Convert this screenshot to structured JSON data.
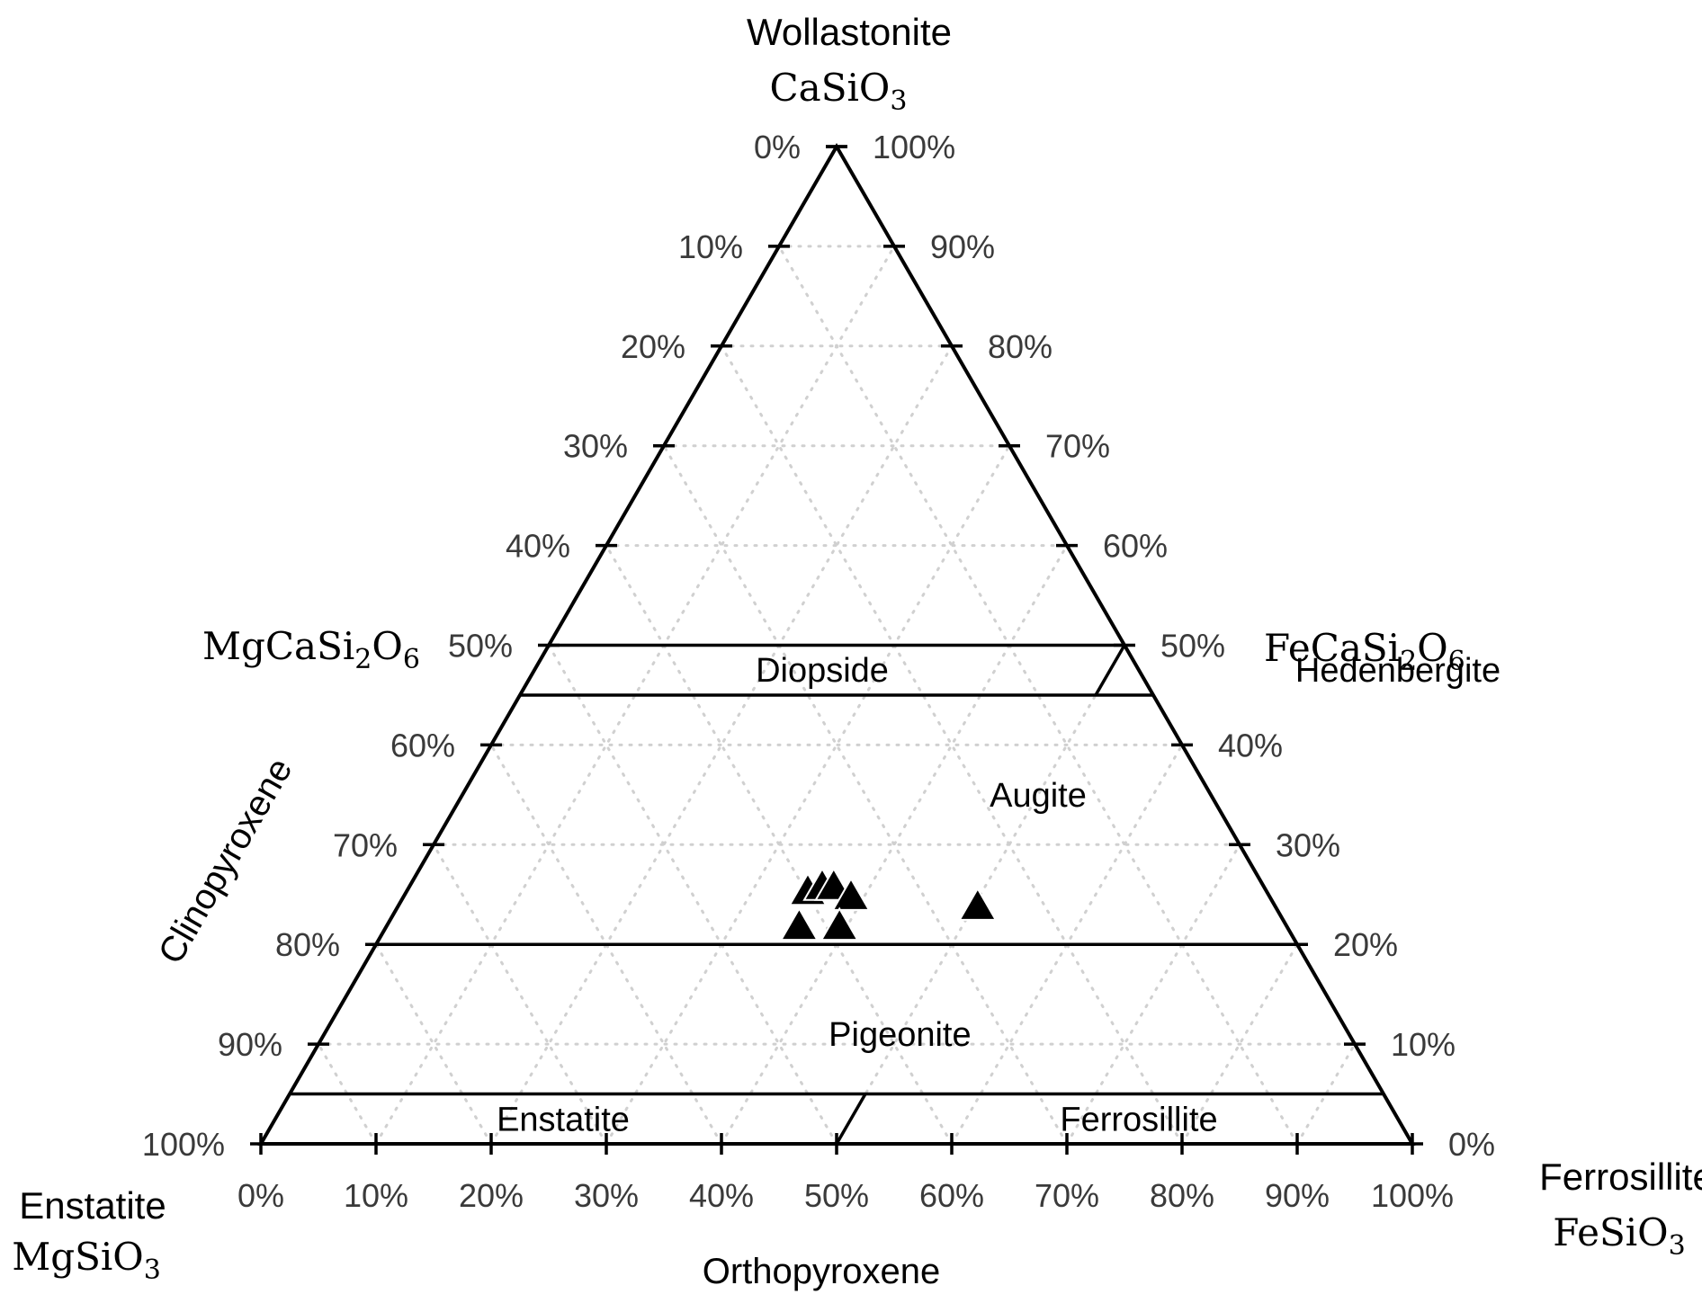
{
  "chart_data": {
    "type": "ternary-scatter",
    "corners": {
      "top": {
        "name": "Wollastonite",
        "formula": "CaSiO",
        "formula_sub": "3"
      },
      "bottom_left": {
        "name": "Enstatite",
        "formula": "MgSiO",
        "formula_sub": "3"
      },
      "bottom_right": {
        "name": "Ferrosillite",
        "formula": "FeSiO",
        "formula_sub": "3"
      }
    },
    "midpoints": {
      "left": {
        "parts": [
          "MgCaSi",
          "2",
          "O",
          "6"
        ]
      },
      "right": {
        "parts": [
          "FeCaSi",
          "2",
          "O",
          "6"
        ]
      }
    },
    "axis_titles": {
      "left": "Clinopyroxene",
      "bottom": "Orthopyroxene"
    },
    "ticks": {
      "left": [
        "0%",
        "10%",
        "20%",
        "30%",
        "40%",
        "50%",
        "60%",
        "70%",
        "80%",
        "90%",
        "100%"
      ],
      "right": [
        "100%",
        "90%",
        "80%",
        "70%",
        "60%",
        "50%",
        "40%",
        "30%",
        "20%",
        "10%",
        "0%"
      ],
      "bottom": [
        "0%",
        "10%",
        "20%",
        "30%",
        "40%",
        "50%",
        "60%",
        "70%",
        "80%",
        "90%",
        "100%"
      ]
    },
    "fields": [
      {
        "label": "Diopside",
        "fs": 25,
        "wo": 47.5
      },
      {
        "label": "Hedenbergite",
        "fs": 75,
        "wo": 47.5
      },
      {
        "label": "Augite",
        "fs": 50,
        "wo": 35
      },
      {
        "label": "Pigeonite",
        "fs": 50,
        "wo": 11
      },
      {
        "label": "Enstatite",
        "fs": 25,
        "wo": 2.5
      },
      {
        "label": "Ferrosillite",
        "fs": 75,
        "wo": 2.5
      }
    ],
    "boundaries": {
      "wo_levels": [
        50,
        45,
        20,
        5
      ],
      "vertical_dividers": [
        {
          "fs": 50,
          "wo_from": 45,
          "wo_to": 50
        },
        {
          "fs": 50,
          "wo_from": 0,
          "wo_to": 5
        }
      ]
    },
    "grid": true,
    "points": [
      {
        "fs": 35,
        "wo": 25
      },
      {
        "fs": 36,
        "wo": 25.5
      },
      {
        "fs": 37,
        "wo": 25.5
      },
      {
        "fs": 39,
        "wo": 24.5
      },
      {
        "fs": 36,
        "wo": 21.5
      },
      {
        "fs": 39.5,
        "wo": 21.5
      },
      {
        "fs": 50.5,
        "wo": 23.5
      }
    ],
    "marker": "filled-triangle"
  }
}
